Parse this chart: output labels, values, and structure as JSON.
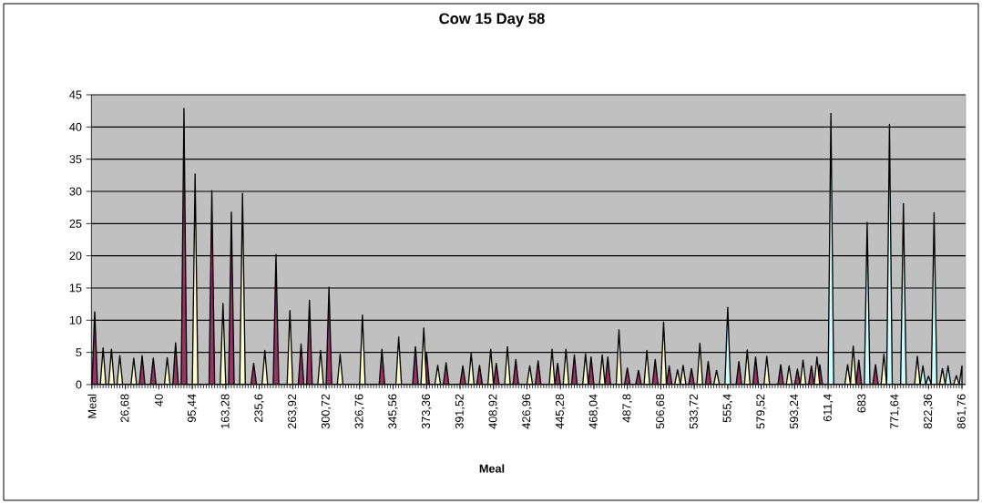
{
  "chart_data": {
    "type": "area",
    "title": "Cow 15 Day 58",
    "xlabel": "Meal",
    "categories": [
      "Meal",
      null,
      null,
      null,
      null,
      null,
      null,
      null,
      null,
      null,
      null,
      null,
      "26,68",
      null,
      null,
      null,
      null,
      null,
      null,
      null,
      null,
      null,
      null,
      null,
      "40",
      null,
      null,
      null,
      null,
      null,
      null,
      null,
      null,
      null,
      null,
      null,
      "95,44",
      null,
      null,
      null,
      null,
      null,
      null,
      null,
      null,
      null,
      null,
      null,
      "163,28",
      null,
      null,
      null,
      null,
      null,
      null,
      null,
      null,
      null,
      null,
      null,
      "235,6",
      null,
      null,
      null,
      null,
      null,
      null,
      null,
      null,
      null,
      null,
      null,
      "263,92",
      null,
      null,
      null,
      null,
      null,
      null,
      null,
      null,
      null,
      null,
      null,
      "300,72",
      null,
      null,
      null,
      null,
      null,
      null,
      null,
      null,
      null,
      null,
      null,
      "326,76",
      null,
      null,
      null,
      null,
      null,
      null,
      null,
      null,
      null,
      null,
      null,
      "345,56",
      null,
      null,
      null,
      null,
      null,
      null,
      null,
      null,
      null,
      null,
      null,
      "373,36",
      null,
      null,
      null,
      null,
      null,
      null,
      null,
      null,
      null,
      null,
      null,
      "391,52",
      null,
      null,
      null,
      null,
      null,
      null,
      null,
      null,
      null,
      null,
      null,
      "408,92",
      null,
      null,
      null,
      null,
      null,
      null,
      null,
      null,
      null,
      null,
      null,
      "426,96",
      null,
      null,
      null,
      null,
      null,
      null,
      null,
      null,
      null,
      null,
      null,
      "445,28",
      null,
      null,
      null,
      null,
      null,
      null,
      null,
      null,
      null,
      null,
      null,
      "468,04",
      null,
      null,
      null,
      null,
      null,
      null,
      null,
      null,
      null,
      null,
      null,
      "487,8",
      null,
      null,
      null,
      null,
      null,
      null,
      null,
      null,
      null,
      null,
      null,
      "506,68",
      null,
      null,
      null,
      null,
      null,
      null,
      null,
      null,
      null,
      null,
      null,
      "533,72",
      null,
      null,
      null,
      null,
      null,
      null,
      null,
      null,
      null,
      null,
      null,
      "555,4",
      null,
      null,
      null,
      null,
      null,
      null,
      null,
      null,
      null,
      null,
      null,
      "579,52",
      null,
      null,
      null,
      null,
      null,
      null,
      null,
      null,
      null,
      null,
      null,
      "593,24",
      null,
      null,
      null,
      null,
      null,
      null,
      null,
      null,
      null,
      null,
      null,
      "611,4",
      null,
      null,
      null,
      null,
      null,
      null,
      null,
      null,
      null,
      null,
      null,
      "683",
      null,
      null,
      null,
      null,
      null,
      null,
      null,
      null,
      null,
      null,
      null,
      "771,64",
      null,
      null,
      null,
      null,
      null,
      null,
      null,
      null,
      null,
      null,
      null,
      "822,36",
      null,
      null,
      null,
      null,
      null,
      null,
      null,
      null,
      null,
      null,
      null,
      "861,76"
    ],
    "series": [
      {
        "color": "#993366",
        "values": [
          0,
          11.3,
          0,
          0,
          0,
          0,
          0,
          0,
          0,
          0,
          0,
          0,
          0,
          0,
          0,
          0,
          0,
          0,
          4.5,
          0,
          0,
          0,
          4.1,
          0,
          0,
          0,
          0,
          0,
          0,
          0,
          6.5,
          0,
          0,
          42.9,
          0,
          0,
          0,
          0,
          0,
          0,
          0,
          0,
          0,
          30.1,
          0,
          0,
          0,
          0,
          0,
          0,
          26.8,
          0,
          0,
          0,
          0,
          0,
          0,
          0,
          3.3,
          0,
          0,
          0,
          0,
          0,
          0,
          0,
          20.2,
          0,
          0,
          0,
          0,
          0,
          0,
          0,
          0,
          6.3,
          0,
          0,
          13.1,
          0,
          0,
          0,
          0,
          0,
          0,
          15.1,
          0,
          0,
          0,
          0,
          0,
          0,
          0,
          0,
          0,
          0,
          0,
          0,
          0,
          0,
          0,
          0,
          0,
          0,
          5.5,
          0,
          0,
          0,
          0,
          0,
          0,
          0,
          0,
          0,
          0,
          0,
          5.9,
          0,
          0,
          0,
          5.0,
          0,
          0,
          0,
          0,
          0,
          0,
          3.4,
          0,
          0,
          0,
          0,
          0,
          2.9,
          0,
          0,
          0,
          0,
          0,
          3.0,
          0,
          0,
          0,
          0,
          0,
          3.3,
          0,
          0,
          0,
          0,
          0,
          0,
          3.9,
          0,
          0,
          0,
          0,
          0,
          0,
          0,
          3.7,
          0,
          0,
          0,
          0,
          0,
          0,
          3.3,
          0,
          0,
          0,
          0,
          0,
          4.6,
          0,
          0,
          0,
          0,
          0,
          4.3,
          0,
          0,
          0,
          0,
          0,
          4.3,
          0,
          0,
          0,
          0,
          0,
          0,
          2.6,
          0,
          0,
          0,
          2.2,
          0,
          0,
          0,
          0,
          0,
          3.9,
          0,
          0,
          0,
          0,
          2.9,
          0,
          0,
          0,
          0,
          0,
          0,
          0,
          2.5,
          0,
          0,
          0,
          0,
          0,
          3.6,
          0,
          0,
          0,
          0,
          0,
          0,
          0,
          0,
          0,
          0,
          3.6,
          0,
          0,
          0,
          0,
          0,
          4.3,
          0,
          0,
          0,
          0,
          0,
          0,
          0,
          0,
          3.1,
          0,
          0,
          0,
          0,
          0,
          2.4,
          0,
          0,
          0,
          0,
          2.9,
          0,
          0,
          3.1,
          0,
          0,
          0,
          0,
          0,
          0,
          0,
          0,
          0,
          0,
          0,
          0,
          0,
          3.8,
          0,
          0,
          0,
          0,
          0,
          3.1,
          0,
          0,
          0,
          0,
          0,
          0,
          0,
          0,
          0,
          0,
          0,
          0,
          0,
          0,
          0,
          0,
          0,
          0,
          0,
          0,
          0,
          0,
          0,
          0,
          0,
          0,
          0,
          0,
          0,
          0,
          0
        ]
      },
      {
        "color": "#ffffcc",
        "values": [
          0,
          0,
          0,
          0,
          5.7,
          0,
          0,
          5.5,
          0,
          0,
          4.5,
          0,
          0,
          0,
          0,
          4.1,
          0,
          0,
          0,
          0,
          0,
          0,
          0,
          0,
          0,
          0,
          0,
          4.2,
          0,
          0,
          0,
          0,
          0,
          0,
          0,
          0,
          0,
          32.7,
          0,
          0,
          0,
          0,
          0,
          0,
          0,
          0,
          0,
          12.6,
          0,
          0,
          0,
          0,
          0,
          0,
          29.7,
          0,
          0,
          0,
          0,
          0,
          0,
          0,
          5.3,
          0,
          0,
          0,
          0,
          0,
          0,
          0,
          0,
          11.5,
          0,
          0,
          0,
          0,
          0,
          0,
          0,
          0,
          0,
          0,
          5.3,
          0,
          0,
          0,
          0,
          0,
          0,
          4.7,
          0,
          0,
          0,
          0,
          0,
          0,
          0,
          10.8,
          0,
          0,
          0,
          0,
          0,
          0,
          0,
          0,
          0,
          0,
          0,
          0,
          7.4,
          0,
          0,
          0,
          0,
          0,
          0,
          0,
          0,
          8.8,
          0,
          0,
          0,
          0,
          3.0,
          0,
          0,
          0,
          0,
          0,
          0,
          0,
          0,
          0,
          0,
          0,
          4.9,
          0,
          0,
          0,
          0,
          0,
          0,
          5.5,
          0,
          0,
          0,
          0,
          0,
          5.9,
          0,
          0,
          0,
          0,
          0,
          0,
          0,
          2.9,
          0,
          0,
          0,
          0,
          0,
          0,
          0,
          5.5,
          0,
          0,
          0,
          0,
          5.5,
          0,
          0,
          0,
          0,
          0,
          0,
          4.8,
          0,
          0,
          0,
          0,
          0,
          4.6,
          0,
          0,
          0,
          0,
          0,
          8.5,
          0,
          0,
          0,
          0,
          0,
          0,
          0,
          0,
          0,
          5.3,
          0,
          0,
          0,
          0,
          0,
          9.7,
          0,
          0,
          0,
          0,
          2.3,
          0,
          3.0,
          0,
          0,
          0,
          0,
          0,
          6.4,
          0,
          0,
          0,
          0,
          0,
          2.2,
          0,
          0,
          0,
          0,
          0,
          0,
          0,
          0,
          0,
          0,
          5.4,
          0,
          0,
          0,
          0,
          0,
          0,
          4.4,
          0,
          0,
          0,
          0,
          0,
          0,
          0,
          2.9,
          0,
          0,
          0,
          0,
          3.8,
          0,
          0,
          0,
          0,
          4.3,
          0,
          0,
          0,
          0,
          0,
          0,
          0,
          0,
          0,
          0,
          3.1,
          0,
          6.0,
          0,
          0,
          0,
          0,
          0,
          0,
          0,
          0,
          0,
          0,
          4.7,
          0,
          0,
          0,
          0,
          0,
          0,
          0,
          0,
          0,
          0,
          0,
          4.4,
          0,
          0,
          0,
          0,
          0,
          0,
          0,
          0,
          2.5,
          0,
          0,
          0,
          0,
          1.4,
          0,
          0
        ]
      },
      {
        "color": "#ccffff",
        "values": [
          0,
          0,
          0,
          0,
          0,
          0,
          0,
          0,
          0,
          0,
          0,
          0,
          0,
          0,
          0,
          0,
          0,
          0,
          0,
          0,
          0,
          0,
          0,
          0,
          0,
          0,
          0,
          0,
          0,
          0,
          0,
          0,
          0,
          0,
          0,
          0,
          0,
          0,
          0,
          0,
          0,
          0,
          0,
          0,
          0,
          0,
          0,
          0,
          0,
          0,
          0,
          0,
          0,
          0,
          0,
          0,
          0,
          0,
          0,
          0,
          0,
          0,
          0,
          0,
          0,
          0,
          0,
          0,
          0,
          0,
          0,
          0,
          0,
          0,
          0,
          0,
          0,
          0,
          0,
          0,
          0,
          0,
          0,
          0,
          0,
          0,
          0,
          0,
          0,
          0,
          0,
          0,
          0,
          0,
          0,
          0,
          0,
          0,
          0,
          0,
          0,
          0,
          0,
          0,
          0,
          0,
          0,
          0,
          0,
          0,
          0,
          0,
          0,
          0,
          0,
          0,
          0,
          0,
          0,
          0,
          0,
          0,
          0,
          0,
          0,
          0,
          0,
          0,
          0,
          0,
          0,
          0,
          0,
          0,
          0,
          0,
          0,
          0,
          0,
          0,
          0,
          0,
          0,
          0,
          0,
          0,
          0,
          0,
          0,
          0,
          0,
          0,
          0,
          0,
          0,
          0,
          0,
          0,
          0,
          0,
          0,
          0,
          0,
          0,
          0,
          0,
          0,
          0,
          0,
          0,
          0,
          0,
          0,
          0,
          0,
          0,
          0,
          0,
          0,
          0,
          0,
          0,
          0,
          0,
          0,
          0,
          0,
          0,
          0,
          0,
          0,
          0,
          0,
          0,
          0,
          0,
          0,
          0,
          0,
          0,
          0,
          0,
          0,
          0,
          0,
          0,
          0,
          0,
          0,
          0,
          0,
          0,
          0,
          0,
          0,
          0,
          0,
          0,
          0,
          0,
          0,
          0,
          0,
          0,
          0,
          0,
          0,
          0,
          12.0,
          0,
          0,
          0,
          0,
          0,
          0,
          0,
          0,
          0,
          0,
          0,
          0,
          0,
          0,
          0,
          0,
          0,
          0,
          0,
          0,
          0,
          0,
          0,
          0,
          0,
          0,
          0,
          0,
          0,
          0,
          0,
          0,
          0,
          0,
          0,
          0,
          42.1,
          0,
          0,
          0,
          0,
          0,
          0,
          0,
          0,
          0,
          0,
          0,
          0,
          25.2,
          0,
          0,
          0,
          0,
          0,
          0,
          0,
          40.4,
          0,
          0,
          0,
          0,
          28.1,
          0,
          0,
          0,
          0,
          0,
          0,
          2.9,
          0,
          1.3,
          0,
          26.7,
          0,
          0,
          0,
          0,
          2.9,
          0,
          0,
          0,
          0,
          2.9
        ]
      }
    ],
    "ylim": [
      0,
      45
    ],
    "yticks": [
      0,
      5,
      10,
      15,
      20,
      25,
      30,
      35,
      40,
      45
    ],
    "grid": "y"
  }
}
